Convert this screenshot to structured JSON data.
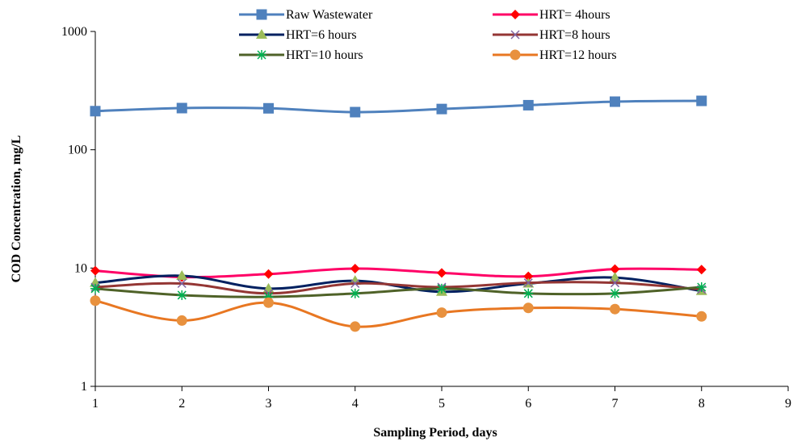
{
  "chart_data": {
    "type": "line",
    "title": "",
    "xlabel": "Sampling Period, days",
    "ylabel": "COD Concentration, mg/L",
    "xlim": [
      1,
      9
    ],
    "ylim": [
      1,
      1000
    ],
    "yscale": "log",
    "x_ticks": [
      1,
      2,
      3,
      4,
      5,
      6,
      7,
      8,
      9
    ],
    "y_ticks": [
      1,
      10,
      100,
      1000
    ],
    "grid": false,
    "legend_position": "top",
    "x": [
      1,
      2,
      3,
      4,
      5,
      6,
      7,
      8
    ],
    "series": [
      {
        "name": "Raw Wastewater",
        "color": "#4F81BD",
        "marker": "square",
        "values": [
          212,
          225,
          224,
          208,
          221,
          238,
          255,
          259
        ]
      },
      {
        "name": "HRT= 4hours",
        "color": "#FF0066",
        "marker_color": "#FF0000",
        "marker": "diamond",
        "values": [
          9.5,
          8.4,
          8.9,
          9.9,
          9.1,
          8.5,
          9.8,
          9.7
        ]
      },
      {
        "name": "HRT=6 hours",
        "color": "#002060",
        "marker_color": "#9BBB59",
        "marker": "triangle",
        "values": [
          7.5,
          8.6,
          6.7,
          7.8,
          6.3,
          7.4,
          8.3,
          6.4
        ]
      },
      {
        "name": "HRT=8 hours",
        "color": "#943634",
        "marker_color": "#8064A2",
        "marker": "x",
        "values": [
          6.9,
          7.4,
          6.1,
          7.4,
          6.9,
          7.5,
          7.5,
          6.6
        ]
      },
      {
        "name": "HRT=10 hours",
        "color": "#4F6228",
        "marker_color": "#00B050",
        "marker": "asterisk",
        "values": [
          6.7,
          5.9,
          5.7,
          6.1,
          6.7,
          6.1,
          6.1,
          6.9
        ]
      },
      {
        "name": "HRT=12 hours",
        "color": "#E87722",
        "marker_color": "#E8913E",
        "marker": "circle",
        "values": [
          5.3,
          3.6,
          5.1,
          3.2,
          4.2,
          4.6,
          4.5,
          3.9
        ]
      }
    ]
  }
}
